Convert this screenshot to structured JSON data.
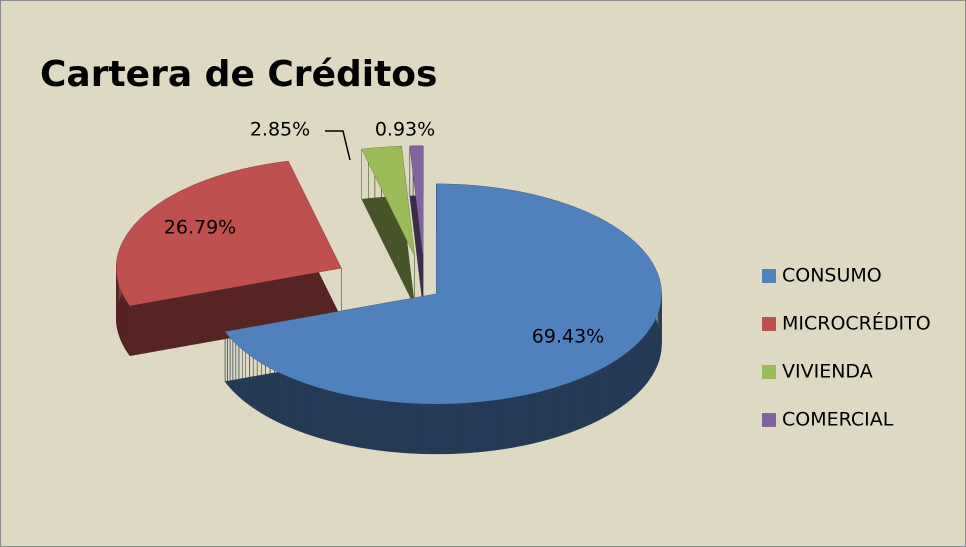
{
  "chart_data": {
    "type": "pie",
    "title": "Cartera de Créditos",
    "categories": [
      "CONSUMO",
      "MICROCRÉDITO",
      "VIVIENDA",
      "COMERCIAL"
    ],
    "values": [
      69.43,
      26.79,
      2.85,
      0.93
    ],
    "value_labels": [
      "69.43%",
      "26.79%",
      "2.85%",
      "0.93%"
    ],
    "colors": [
      "#4f81bd",
      "#c0504d",
      "#9bbb59",
      "#8064a2"
    ],
    "legend": "right"
  }
}
